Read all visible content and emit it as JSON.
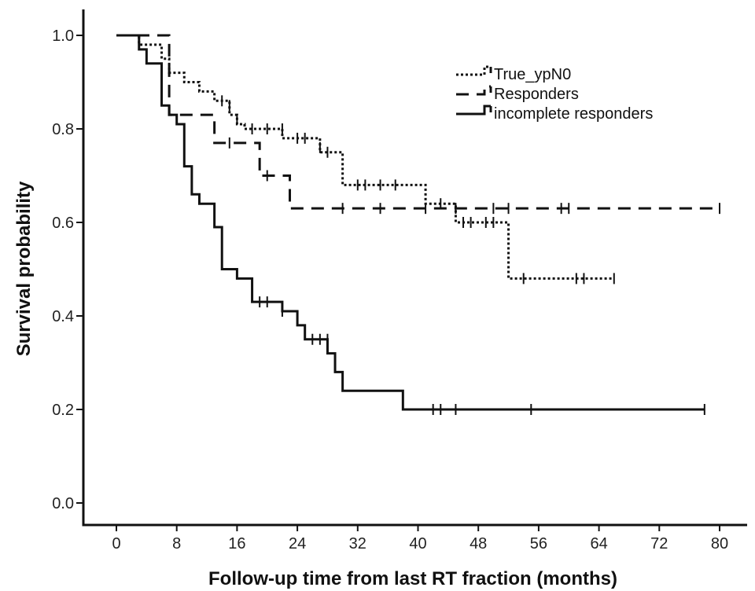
{
  "chart_data": {
    "type": "line",
    "subtype": "kaplan-meier step curves with censoring marks",
    "title": "",
    "xlabel": "Follow-up time from last RT fraction (months)",
    "ylabel": "Survival probability",
    "xlim": [
      0,
      80
    ],
    "ylim": [
      0.0,
      1.0
    ],
    "x_ticks": [
      0,
      8,
      16,
      24,
      32,
      40,
      48,
      56,
      64,
      72,
      80
    ],
    "y_ticks": [
      0.0,
      0.2,
      0.4,
      0.6,
      0.8,
      1.0
    ],
    "y_tick_labels": [
      "0.0",
      "0.2",
      "0.4",
      "0.6",
      "0.8",
      "1.0"
    ],
    "grid": false,
    "legend_position": "top-right",
    "series": [
      {
        "name": "True_ypN0",
        "style": "dotted",
        "color": "#111111",
        "steps": [
          [
            0,
            1.0
          ],
          [
            3,
            0.98
          ],
          [
            6,
            0.95
          ],
          [
            7,
            0.92
          ],
          [
            9,
            0.9
          ],
          [
            11,
            0.88
          ],
          [
            13,
            0.86
          ],
          [
            15,
            0.83
          ],
          [
            16,
            0.81
          ],
          [
            17,
            0.8
          ],
          [
            22,
            0.78
          ],
          [
            27,
            0.75
          ],
          [
            30,
            0.68
          ],
          [
            41,
            0.64
          ],
          [
            45,
            0.6
          ],
          [
            52,
            0.48
          ],
          [
            66,
            0.48
          ]
        ],
        "censored": [
          [
            14,
            0.86
          ],
          [
            15,
            0.85
          ],
          [
            16,
            0.82
          ],
          [
            18,
            0.8
          ],
          [
            20,
            0.8
          ],
          [
            22,
            0.8
          ],
          [
            24,
            0.78
          ],
          [
            25,
            0.78
          ],
          [
            27,
            0.76
          ],
          [
            28,
            0.75
          ],
          [
            32,
            0.68
          ],
          [
            33,
            0.68
          ],
          [
            35,
            0.68
          ],
          [
            37,
            0.68
          ],
          [
            43,
            0.64
          ],
          [
            46,
            0.6
          ],
          [
            47,
            0.6
          ],
          [
            49,
            0.6
          ],
          [
            50,
            0.6
          ],
          [
            54,
            0.48
          ],
          [
            61,
            0.48
          ],
          [
            62,
            0.48
          ],
          [
            66,
            0.48
          ]
        ]
      },
      {
        "name": "Responders",
        "style": "dashed",
        "color": "#111111",
        "steps": [
          [
            0,
            1.0
          ],
          [
            7,
            0.83
          ],
          [
            13,
            0.77
          ],
          [
            19,
            0.7
          ],
          [
            23,
            0.63
          ],
          [
            80,
            0.63
          ]
        ],
        "censored": [
          [
            15,
            0.77
          ],
          [
            20,
            0.7
          ],
          [
            30,
            0.63
          ],
          [
            35,
            0.63
          ],
          [
            41,
            0.63
          ],
          [
            45,
            0.63
          ],
          [
            50,
            0.63
          ],
          [
            52,
            0.63
          ],
          [
            59,
            0.63
          ],
          [
            60,
            0.63
          ],
          [
            80,
            0.63
          ]
        ]
      },
      {
        "name": "incomplete responders",
        "style": "solid",
        "color": "#111111",
        "steps": [
          [
            0,
            1.0
          ],
          [
            3,
            0.97
          ],
          [
            4,
            0.94
          ],
          [
            6,
            0.85
          ],
          [
            7,
            0.83
          ],
          [
            8,
            0.81
          ],
          [
            9,
            0.72
          ],
          [
            10,
            0.66
          ],
          [
            11,
            0.64
          ],
          [
            13,
            0.59
          ],
          [
            14,
            0.5
          ],
          [
            16,
            0.48
          ],
          [
            18,
            0.43
          ],
          [
            22,
            0.41
          ],
          [
            24,
            0.38
          ],
          [
            25,
            0.35
          ],
          [
            28,
            0.32
          ],
          [
            29,
            0.28
          ],
          [
            30,
            0.24
          ],
          [
            38,
            0.2
          ],
          [
            78,
            0.2
          ]
        ],
        "censored": [
          [
            19,
            0.43
          ],
          [
            20,
            0.43
          ],
          [
            22,
            0.41
          ],
          [
            26,
            0.35
          ],
          [
            27,
            0.35
          ],
          [
            28,
            0.35
          ],
          [
            42,
            0.2
          ],
          [
            43,
            0.2
          ],
          [
            45,
            0.2
          ],
          [
            55,
            0.2
          ],
          [
            78,
            0.2
          ]
        ]
      }
    ]
  }
}
